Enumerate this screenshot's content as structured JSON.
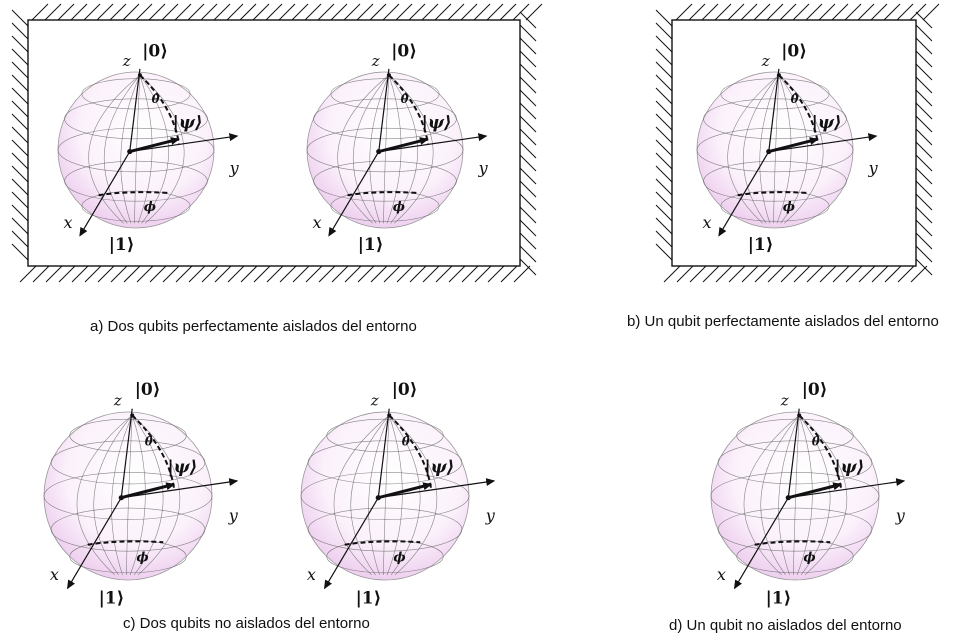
{
  "labels": {
    "ket0": "|0⟩",
    "ket1": "|1⟩",
    "psi": "|ψ⟩",
    "theta": "θ",
    "phi": "ϕ",
    "z": "z",
    "y": "y",
    "x": "x"
  },
  "panels": [
    {
      "id": "a",
      "caption": "a) Dos qubits perfectamente aislados del entorno",
      "isolated": true,
      "spheres": 2
    },
    {
      "id": "b",
      "caption": "b) Un qubit perfectamente aislados del entorno",
      "isolated": true,
      "spheres": 1
    },
    {
      "id": "c",
      "caption": "c) Dos qubits  no aislados del entorno",
      "isolated": false,
      "spheres": 2
    },
    {
      "id": "d",
      "caption": "d) Un qubit  no aislados del entorno",
      "isolated": false,
      "spheres": 1
    }
  ],
  "colors": {
    "line": "#111111",
    "sphere_tint": "#d8a8d8",
    "background": "#ffffff"
  }
}
